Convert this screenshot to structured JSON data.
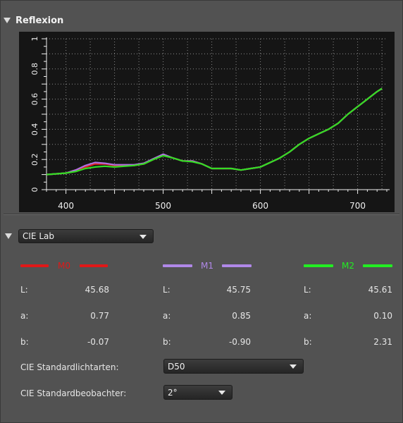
{
  "section_reflexion": {
    "title": "Reflexion"
  },
  "chart_data": {
    "type": "line",
    "xlabel": "",
    "ylabel": "",
    "xlim": [
      380,
      730
    ],
    "ylim": [
      0,
      1
    ],
    "grid": true,
    "x_ticks": [
      "400",
      "500",
      "600",
      "700"
    ],
    "y_ticks": [
      "0",
      "0.2",
      "0.4",
      "0.6",
      "0.8",
      "1"
    ],
    "series": [
      {
        "color": "#e02020",
        "x": [
          380,
          400,
          410,
          420,
          430,
          440,
          450,
          460,
          470,
          480,
          490,
          500,
          510,
          520,
          530,
          540,
          550,
          560,
          570,
          580,
          590,
          600,
          610,
          620,
          630,
          640,
          650,
          660,
          670,
          680,
          690,
          700,
          710,
          720,
          725
        ],
        "y": [
          0.1,
          0.11,
          0.13,
          0.15,
          0.17,
          0.17,
          0.16,
          0.16,
          0.16,
          0.17,
          0.2,
          0.23,
          0.21,
          0.19,
          0.19,
          0.17,
          0.14,
          0.14,
          0.14,
          0.13,
          0.14,
          0.15,
          0.18,
          0.21,
          0.25,
          0.3,
          0.34,
          0.37,
          0.4,
          0.44,
          0.5,
          0.55,
          0.6,
          0.65,
          0.67
        ]
      },
      {
        "color": "#b070e0",
        "x": [
          380,
          400,
          410,
          420,
          430,
          440,
          450,
          460,
          470,
          480,
          490,
          500,
          510,
          520,
          530,
          540,
          550,
          560,
          570,
          580,
          590,
          600,
          610,
          620,
          630,
          640,
          650,
          660,
          670,
          680,
          690,
          700,
          710,
          720,
          725
        ],
        "y": [
          0.1,
          0.11,
          0.13,
          0.16,
          0.18,
          0.175,
          0.165,
          0.165,
          0.165,
          0.175,
          0.205,
          0.235,
          0.21,
          0.19,
          0.19,
          0.17,
          0.14,
          0.14,
          0.14,
          0.13,
          0.14,
          0.15,
          0.18,
          0.21,
          0.25,
          0.3,
          0.34,
          0.37,
          0.4,
          0.44,
          0.5,
          0.55,
          0.6,
          0.65,
          0.67
        ]
      },
      {
        "color": "#33dd22",
        "x": [
          380,
          400,
          410,
          420,
          430,
          440,
          450,
          460,
          470,
          480,
          490,
          500,
          510,
          520,
          530,
          540,
          550,
          560,
          570,
          580,
          590,
          600,
          610,
          620,
          630,
          640,
          650,
          660,
          670,
          680,
          690,
          700,
          710,
          720,
          725
        ],
        "y": [
          0.1,
          0.11,
          0.12,
          0.14,
          0.15,
          0.155,
          0.15,
          0.155,
          0.16,
          0.17,
          0.2,
          0.225,
          0.21,
          0.19,
          0.185,
          0.17,
          0.14,
          0.14,
          0.14,
          0.13,
          0.14,
          0.15,
          0.18,
          0.21,
          0.25,
          0.3,
          0.34,
          0.37,
          0.4,
          0.44,
          0.5,
          0.55,
          0.6,
          0.65,
          0.67
        ]
      }
    ]
  },
  "section_cie": {
    "dropdown_value": "CIE Lab"
  },
  "measurements": [
    {
      "name": "M0",
      "color": "#e01818",
      "label_color": "#e01818",
      "L": "45.68",
      "a": "0.77",
      "b": "-0.07"
    },
    {
      "name": "M1",
      "color": "#b088e8",
      "label_color": "#b088e8",
      "L": "45.75",
      "a": "0.85",
      "b": "-0.90"
    },
    {
      "name": "M2",
      "color": "#22ee22",
      "label_color": "#22ee22",
      "L": "45.61",
      "a": "0.10",
      "b": "2.31"
    }
  ],
  "row_labels": {
    "L": "L:",
    "a": "a:",
    "b": "b:"
  },
  "illuminant": {
    "label": "CIE Standardlichtarten:",
    "value": "D50"
  },
  "observer": {
    "label": "CIE Standardbeobachter:",
    "value": "2°"
  }
}
